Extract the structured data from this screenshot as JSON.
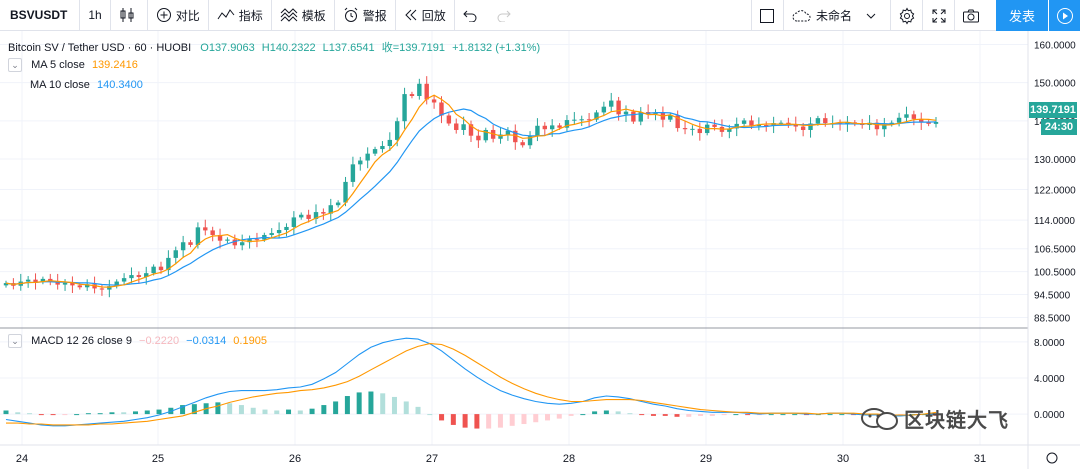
{
  "toolbar": {
    "symbol": "BSVUSDT",
    "interval": "1h",
    "compare_label": "对比",
    "indicators_label": "指标",
    "templates_label": "模板",
    "alert_label": "警报",
    "replay_label": "回放",
    "layout_name": "未命名",
    "publish_label": "发表"
  },
  "legend": {
    "title": "Bitcoin SV / Tether USD · 60 · HUOBI",
    "open": "O137.9063",
    "high": "H140.2322",
    "low": "L137.6541",
    "close_change": "收=139.7191",
    "change": "+1.8132 (+1.31%)",
    "ma5_label": "MA  5 close",
    "ma5_value": "139.2416",
    "ma10_label": "MA  10 close",
    "ma10_value": "140.3400",
    "macd_label": "MACD  12  26  close  9",
    "macd_hist": "−0.2220",
    "macd_line": "−0.0314",
    "macd_signal": "0.1905"
  },
  "price_axis": {
    "ticks": [
      "160.0000",
      "150.0000",
      "140.0000",
      "130.0000",
      "122.0000",
      "114.0000",
      "106.5000",
      "100.5000",
      "94.5000",
      "88.5000"
    ],
    "last_price": "139.7191",
    "countdown": "24:30"
  },
  "macd_axis": {
    "ticks": [
      "8.0000",
      "4.0000",
      "0.0000"
    ]
  },
  "time_axis": {
    "ticks": [
      "24",
      "25",
      "26",
      "27",
      "28",
      "29",
      "30",
      "31"
    ]
  },
  "watermark": "区块链大飞",
  "colors": {
    "up": "#26a69a",
    "down": "#ef5350",
    "ma5": "#ff9800",
    "ma10": "#2196f3",
    "accent": "#2196f3"
  },
  "chart_data": {
    "type": "candlestick",
    "title": "Bitcoin SV / Tether USD · 60 · HUOBI",
    "ylim": [
      86,
      163
    ],
    "close": [
      97.5,
      96.8,
      97.9,
      98.4,
      97.8,
      98.6,
      97.9,
      97.1,
      97.6,
      96.9,
      96.4,
      97.2,
      96.1,
      95.8,
      96.7,
      97.9,
      98.8,
      99.6,
      99.1,
      100.1,
      101.8,
      100.9,
      104.1,
      106.1,
      108.2,
      107.5,
      112.1,
      111.3,
      110.1,
      108.6,
      108.9,
      107.4,
      108.2,
      109.0,
      108.9,
      110.1,
      110.6,
      111.4,
      112.2,
      114.7,
      115.4,
      114.3,
      116.1,
      115.7,
      117.9,
      118.6,
      124.0,
      128.6,
      129.6,
      131.4,
      132.6,
      133.4,
      135.0,
      139.9,
      147.0,
      146.5,
      149.7,
      145.6,
      144.8,
      141.4,
      139.3,
      137.6,
      139.1,
      136.1,
      134.9,
      137.6,
      135.3,
      136.4,
      137.4,
      134.4,
      133.6,
      136.0,
      138.7,
      137.8,
      138.8,
      138.2,
      140.2,
      140.3,
      140.4,
      140.3,
      142.2,
      143.7,
      145.3,
      141.7,
      142.4,
      139.8,
      142.3,
      141.8,
      142.1,
      140.3,
      141.4,
      138.1,
      137.8,
      137.9,
      136.8,
      139.0,
      138.4,
      137.1,
      138.0,
      139.2,
      140.1,
      138.8,
      138.9,
      138.8,
      139.4,
      139.5,
      139.1,
      138.5,
      137.6,
      139.3,
      140.7,
      139.4,
      139.4,
      139.1,
      139.6,
      139.2,
      138.9,
      139.5,
      137.8,
      139.1,
      139.5,
      140.8,
      141.7,
      140.5,
      139.6,
      139.2,
      139.7
    ],
    "macd": [
      -0.6,
      -0.8,
      -1.0,
      -1.2,
      -1.3,
      -1.3,
      -1.2,
      -1.1,
      -1.0,
      -0.9,
      -0.8,
      -0.6,
      -0.4,
      -0.1,
      0.3,
      0.8,
      1.3,
      1.8,
      2.2,
      2.5,
      2.6,
      2.6,
      2.6,
      2.7,
      2.9,
      3.0,
      3.3,
      3.9,
      4.6,
      5.6,
      6.6,
      7.4,
      7.9,
      8.2,
      8.4,
      8.3,
      7.8,
      7.0,
      6.0,
      5.0,
      4.1,
      3.3,
      2.6,
      2.1,
      1.7,
      1.4,
      1.2,
      1.1,
      1.2,
      1.4,
      1.8,
      2.0,
      1.9,
      1.7,
      1.4,
      1.1,
      0.9,
      0.6,
      0.4,
      0.3,
      0.2,
      0.2,
      0.2,
      0.1,
      0.0,
      0.1,
      0.1,
      0.1,
      0.0,
      0.0,
      0.1,
      0.1,
      0.0,
      -0.1,
      -0.1,
      -0.2,
      -0.2,
      -0.1,
      0.0,
      -0.0
    ],
    "signal": [
      -1.0,
      -1.0,
      -1.1,
      -1.1,
      -1.2,
      -1.2,
      -1.2,
      -1.2,
      -1.1,
      -1.1,
      -1.0,
      -0.9,
      -0.8,
      -0.6,
      -0.4,
      -0.2,
      0.2,
      0.6,
      0.9,
      1.3,
      1.6,
      1.9,
      2.1,
      2.3,
      2.4,
      2.6,
      2.7,
      2.9,
      3.2,
      3.6,
      4.2,
      4.9,
      5.6,
      6.3,
      7.0,
      7.5,
      7.8,
      7.7,
      7.2,
      6.5,
      5.7,
      4.9,
      4.1,
      3.4,
      2.8,
      2.3,
      1.9,
      1.6,
      1.4,
      1.4,
      1.5,
      1.6,
      1.6,
      1.6,
      1.5,
      1.3,
      1.1,
      0.9,
      0.7,
      0.5,
      0.4,
      0.3,
      0.2,
      0.2,
      0.1,
      0.1,
      0.1,
      0.1,
      0.1,
      0.0,
      0.1,
      0.1,
      0.1,
      0.0,
      -0.0,
      -0.1,
      -0.1,
      -0.1,
      0.0,
      0.19
    ],
    "macd_ylim": [
      -3.2,
      9.2
    ]
  }
}
